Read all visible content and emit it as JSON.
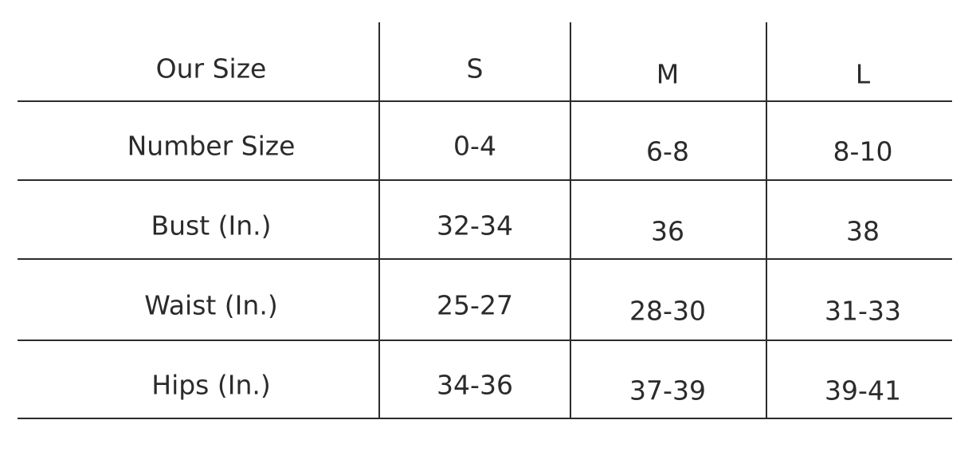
{
  "table": {
    "header": [
      "Our Size",
      "S",
      "M",
      "L"
    ],
    "rows": [
      [
        "Number Size",
        "0-4",
        "6-8",
        "8-10"
      ],
      [
        "Bust (In.)",
        "32-34",
        "36",
        "38"
      ],
      [
        "Waist (In.)",
        "25-27",
        "28-30",
        "31-33"
      ],
      [
        "Hips (In.)",
        "34-36",
        "37-39",
        "39-41"
      ]
    ]
  }
}
